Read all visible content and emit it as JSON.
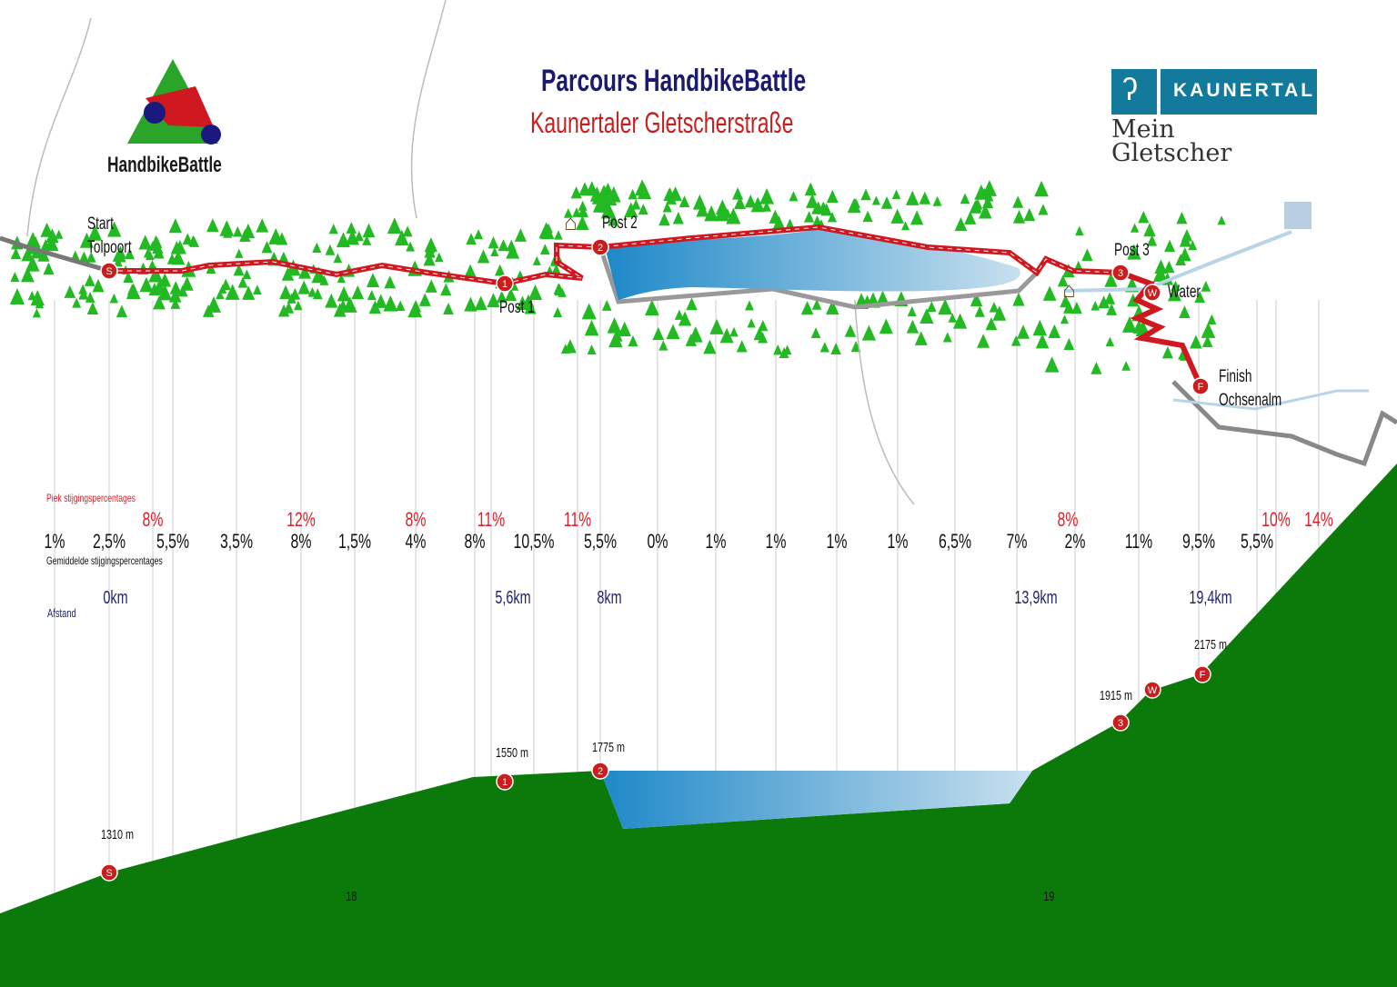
{
  "title": "Parcours HandbikeBattle",
  "subtitle": "Kaunertaler Gletscherstraße",
  "logo_left": {
    "text": "HandbikeBattle"
  },
  "logo_right": {
    "brand": "KAUNERTAL",
    "tagline_1": "Mein",
    "tagline_2": "Gletscher"
  },
  "map": {
    "start_1": "Start",
    "start_2": "Tolpoort",
    "post1": "Post 1",
    "post2": "Post 2",
    "post3": "Post 3",
    "water": "Water",
    "finish_1": "Finish",
    "finish_2": "Ochsenalm",
    "markers": [
      "S",
      "1",
      "2",
      "3",
      "W",
      "F"
    ]
  },
  "labels": {
    "peak": "Piek stijgingspercentages",
    "avg": "Gemiddelde stijgingspercentages",
    "distance": "Afstand"
  },
  "peak_grades": [
    "8%",
    "12%",
    "8%",
    "11%",
    "11%",
    "8%",
    "10%",
    "14%"
  ],
  "avg_grades": [
    "1%",
    "2,5%",
    "5,5%",
    "3,5%",
    "8%",
    "1,5%",
    "4%",
    "8%",
    "10,5%",
    "5,5%",
    "0%",
    "1%",
    "1%",
    "1%",
    "1%",
    "6,5%",
    "7%",
    "2%",
    "11%",
    "9,5%",
    "5,5%"
  ],
  "distances": [
    "0km",
    "5,6km",
    "8km",
    "13,9km",
    "19,4km"
  ],
  "elevations": [
    "1310 m",
    "1550 m",
    "1775 m",
    "1915 m",
    "2175 m"
  ],
  "profile_numbers": [
    "18",
    "19"
  ],
  "colors": {
    "route": "#d01820",
    "forest": "#0b7a0b",
    "tree": "#22b922",
    "lake": "#1e88c8",
    "title": "#1a1a6e",
    "brand": "#137a9c"
  }
}
